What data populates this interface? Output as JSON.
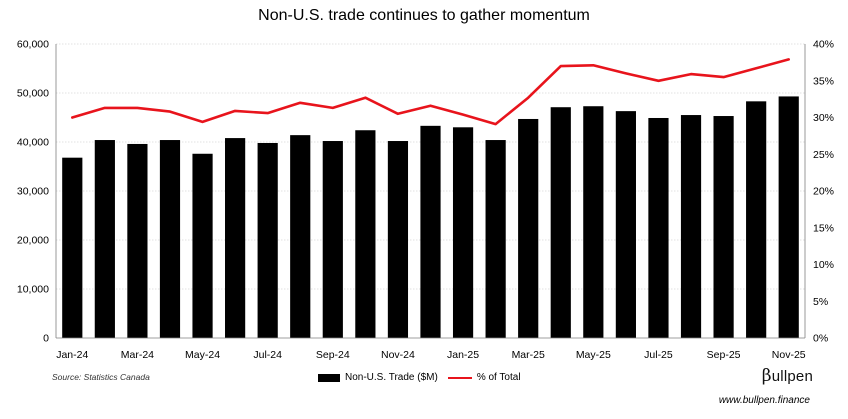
{
  "title": "Non-U.S. trade continues to gather momentum",
  "source": "Source: Statistics Canada",
  "brand": {
    "symbol": "β",
    "name": "ullpen",
    "url": "www.bullpen.finance"
  },
  "colors": {
    "bar": "#000000",
    "line": "#e8141c",
    "grid": "#d9d9d9"
  },
  "chart_data": {
    "type": "bar",
    "categories": [
      "Jan-24",
      "Feb-24",
      "Mar-24",
      "Apr-24",
      "May-24",
      "Jun-24",
      "Jul-24",
      "Aug-24",
      "Sep-24",
      "Oct-24",
      "Nov-24",
      "Dec-24",
      "Jan-25",
      "Feb-25",
      "Mar-25",
      "Apr-25",
      "May-25",
      "Jun-25",
      "Jul-25",
      "Aug-25",
      "Sep-25",
      "Oct-25",
      "Nov-25"
    ],
    "x_tick_labels": [
      "Jan-24",
      "Mar-24",
      "May-24",
      "Jul-24",
      "Sep-24",
      "Nov-24",
      "Jan-25",
      "Mar-25",
      "May-25",
      "Jul-25",
      "Sep-25",
      "Nov-25"
    ],
    "series": [
      {
        "name": "Non-U.S. Trade ($M)",
        "type": "bar",
        "axis": "left",
        "values": [
          36800,
          40400,
          39600,
          40400,
          37600,
          40800,
          39800,
          41400,
          40200,
          42400,
          40200,
          43300,
          43000,
          40400,
          44700,
          47100,
          47300,
          46300,
          44900,
          45500,
          45300,
          48300,
          49300
        ]
      },
      {
        "name": "% of Total",
        "type": "line",
        "axis": "right",
        "values": [
          30.0,
          31.3,
          31.3,
          30.8,
          29.4,
          30.9,
          30.6,
          32.0,
          31.3,
          32.7,
          30.5,
          31.6,
          30.4,
          29.1,
          32.7,
          37.0,
          37.1,
          36.0,
          35.0,
          35.9,
          35.5,
          36.7,
          37.9
        ]
      }
    ],
    "y_left": {
      "min": 0,
      "max": 60000,
      "step": 10000,
      "tick_labels": [
        "0",
        "10,000",
        "20,000",
        "30,000",
        "40,000",
        "50,000",
        "60,000"
      ]
    },
    "y_right": {
      "min": 0,
      "max": 40,
      "step": 5,
      "tick_labels": [
        "0%",
        "5%",
        "10%",
        "15%",
        "20%",
        "25%",
        "30%",
        "35%",
        "40%"
      ]
    },
    "grid": true,
    "legend": "bottom-center"
  }
}
